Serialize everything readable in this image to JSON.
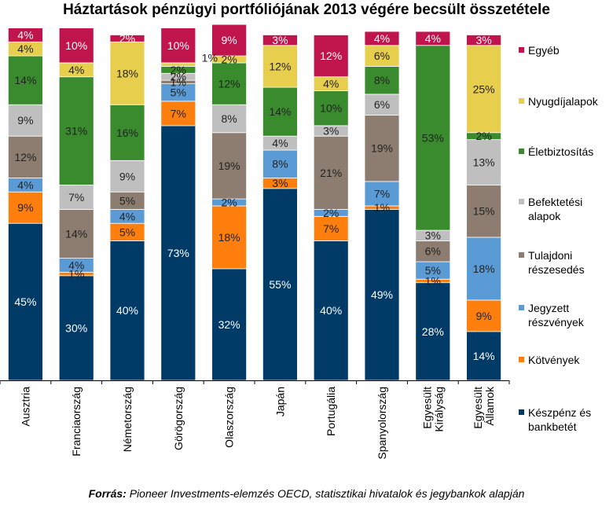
{
  "chart_data": {
    "type": "bar",
    "stacked": true,
    "title": "Háztartások pénzügyi portfóliójának 2013 végére becsült összetétele",
    "source_label": "Forrás:",
    "source_text": "Pioneer Investments-elemzés OECD, statisztikai hivatalok és jegybankok alapján",
    "ylim": [
      0,
      100
    ],
    "grid": false,
    "legend_position": "right",
    "categories": [
      "Ausztria",
      "Franciaország",
      "Németország",
      "Görögország",
      "Olaszország",
      "Japán",
      "Portugália",
      "Spanyolország",
      "Egyesült Királyság",
      "Egyesült Államok"
    ],
    "series": [
      {
        "name": "Készpénz és bankbetét",
        "color": "#003A66",
        "label_color": "#FFFFFF",
        "values": [
          45,
          30,
          40,
          73,
          32,
          55,
          40,
          49,
          28,
          14
        ],
        "labels": [
          "45%",
          "30%",
          "40%",
          "73%",
          "32%",
          "55%",
          "40%",
          "49%",
          "28%",
          "14%"
        ]
      },
      {
        "name": "Kötvények",
        "color": "#FF7F0E",
        "label_color": "#222222",
        "values": [
          9,
          1,
          5,
          7,
          18,
          3,
          7,
          1,
          1,
          9
        ],
        "labels": [
          "9%",
          "1%",
          "5%",
          "7%",
          "18%",
          "3%",
          "7%",
          "1%",
          "1%",
          "9%"
        ]
      },
      {
        "name": "Jegyzett részvények",
        "color": "#5B9BD5",
        "label_color": "#222222",
        "values": [
          4,
          4,
          4,
          5,
          2,
          8,
          2,
          7,
          5,
          18
        ],
        "labels": [
          "4%",
          "4%",
          "4%",
          "5%",
          "2%",
          "8%",
          "2%",
          "7%",
          "5%",
          "18%"
        ]
      },
      {
        "name": "Tulajdoni részesedés",
        "color": "#8C7D70",
        "label_color": "#222222",
        "values": [
          12,
          14,
          5,
          1,
          19,
          0,
          21,
          19,
          6,
          15
        ],
        "labels": [
          "12%",
          "14%",
          "5%",
          "1%",
          "19%",
          "",
          "21%",
          "19%",
          "6%",
          "15%"
        ]
      },
      {
        "name": "Befektetési alapok",
        "color": "#BFBFBF",
        "label_color": "#222222",
        "values": [
          9,
          7,
          9,
          2,
          8,
          4,
          3,
          6,
          3,
          13
        ],
        "labels": [
          "9%",
          "7%",
          "9%",
          "2%",
          "8%",
          "4%",
          "3%",
          "6%",
          "3%",
          "13%"
        ]
      },
      {
        "name": "Életbiztosítás",
        "color": "#3A8B2E",
        "label_color": "#222222",
        "values": [
          14,
          31,
          16,
          2,
          12,
          14,
          10,
          8,
          53,
          2
        ],
        "labels": [
          "14%",
          "31%",
          "16%",
          "2%",
          "12%",
          "14%",
          "10%",
          "8%",
          "53%",
          "2%"
        ]
      },
      {
        "name": "Nyugdíjalapok",
        "color": "#E8CE4D",
        "label_color": "#222222",
        "values": [
          4,
          4,
          18,
          1,
          2,
          12,
          4,
          6,
          0,
          25
        ],
        "labels": [
          "4%",
          "4%",
          "18%",
          "",
          "2%",
          "12%",
          "4%",
          "6%",
          "",
          "25%"
        ]
      },
      {
        "name": "Egyéb",
        "color": "#C0144C",
        "label_color": "#FFFFFF",
        "values": [
          4,
          10,
          2,
          10,
          9,
          3,
          12,
          4,
          4,
          3
        ],
        "labels": [
          "4%",
          "10%",
          "2%",
          "10%",
          "9%",
          "3%",
          "12%",
          "4%",
          "4%",
          "3%"
        ]
      }
    ],
    "annotations": [
      {
        "text": "1%",
        "category": "Görögország",
        "series": "Nyugdíjalapok"
      }
    ],
    "legend": [
      {
        "name": "Egyéb",
        "lines": [
          "Egyéb"
        ]
      },
      {
        "name": "Nyugdíjalapok",
        "lines": [
          "Nyugdíjalapok"
        ]
      },
      {
        "name": "Életbiztosítás",
        "lines": [
          "Életbiztosítás"
        ]
      },
      {
        "name": "Befektetési alapok",
        "lines": [
          "Befektetési",
          "alapok"
        ]
      },
      {
        "name": "Tulajdoni részesedés",
        "lines": [
          "Tulajdoni",
          "részesedés"
        ]
      },
      {
        "name": "Jegyzett részvények",
        "lines": [
          "Jegyzett",
          "részvények"
        ]
      },
      {
        "name": "Kötvények",
        "lines": [
          "Kötvények"
        ]
      },
      {
        "name": "Készpénz és bankbetét",
        "lines": [
          "Készpénz és",
          "bankbetét"
        ]
      }
    ],
    "category_lines": [
      [
        "Ausztria"
      ],
      [
        "Franciaország"
      ],
      [
        "Németország"
      ],
      [
        "Görögország"
      ],
      [
        "Olaszország"
      ],
      [
        "Japán"
      ],
      [
        "Portugália"
      ],
      [
        "Spanyolország"
      ],
      [
        "Egyesült",
        "Királyság"
      ],
      [
        "Egyesült",
        "Államok"
      ]
    ]
  }
}
